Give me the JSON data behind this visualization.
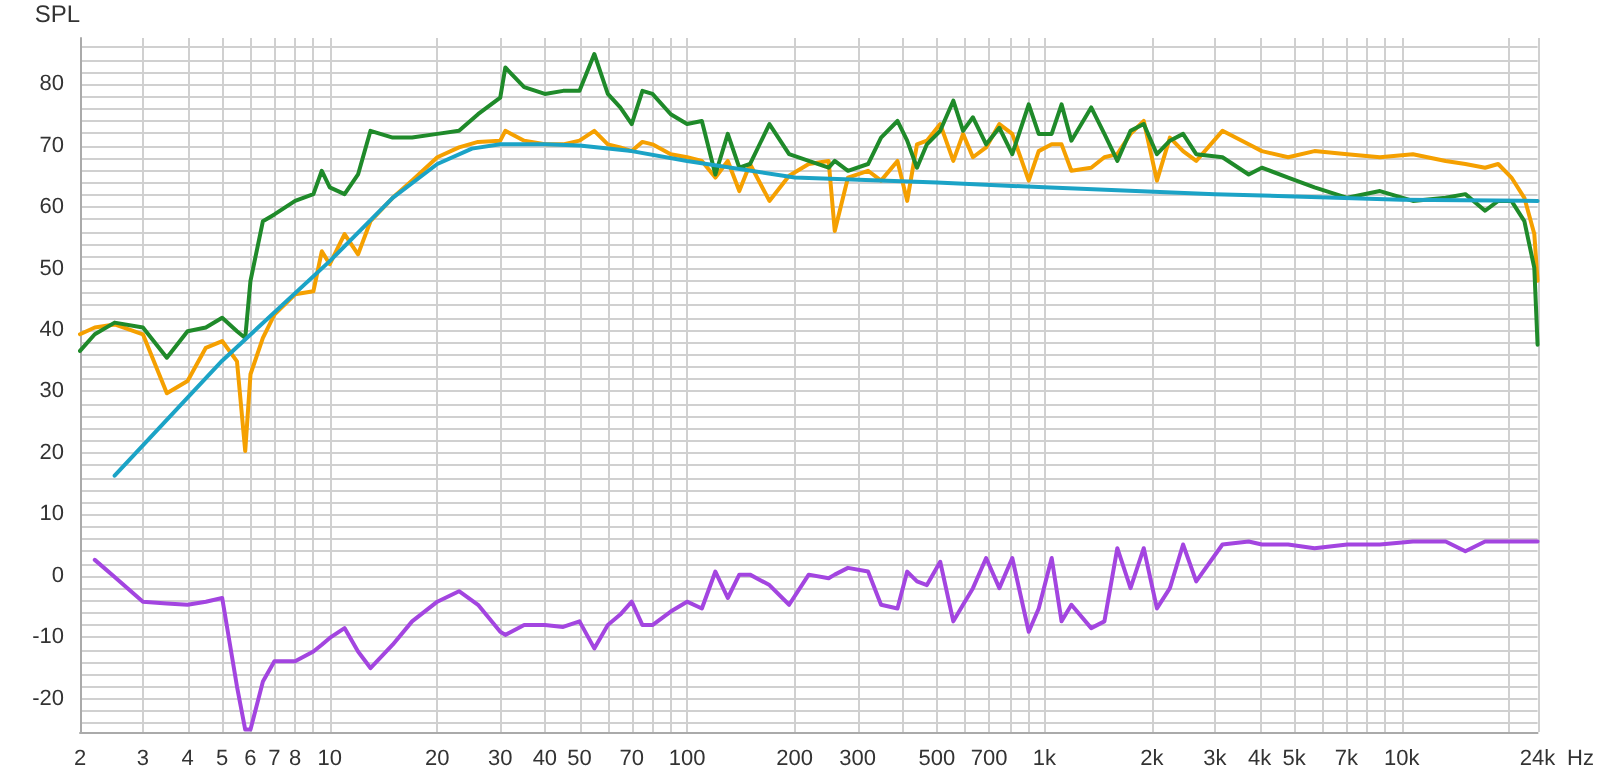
{
  "chart_data": {
    "type": "line",
    "ylabel": "SPL",
    "log": "x",
    "grid": true,
    "xlim": [
      2,
      24000
    ],
    "ylim": [
      -25.4,
      87.5
    ],
    "xticks": [
      2,
      3,
      4,
      5,
      6,
      7,
      8,
      {
        "value": 9,
        "label": null
      },
      10,
      20,
      30,
      40,
      50,
      {
        "value": 60,
        "label": null
      },
      70,
      {
        "value": 80,
        "label": null
      },
      {
        "value": 90,
        "label": null
      },
      100,
      200,
      300,
      {
        "value": 400,
        "label": null
      },
      500,
      {
        "value": 600,
        "label": null
      },
      700,
      {
        "value": 800,
        "label": null
      },
      {
        "value": 900,
        "label": null
      },
      {
        "value": 1000,
        "label": "1k"
      },
      {
        "value": 2000,
        "label": "2k"
      },
      {
        "value": 3000,
        "label": "3k"
      },
      {
        "value": 4000,
        "label": "4k"
      },
      {
        "value": 5000,
        "label": "5k"
      },
      {
        "value": 6000,
        "label": null
      },
      {
        "value": 7000,
        "label": "7k"
      },
      {
        "value": 8000,
        "label": null
      },
      {
        "value": 9000,
        "label": null
      },
      {
        "value": 10000,
        "label": "10k"
      },
      {
        "value": 20000,
        "label": null
      },
      {
        "value": 24000,
        "label": "24k"
      }
    ],
    "xlabel": "Hz",
    "yticks": [
      {
        "value": -24,
        "label": null
      },
      {
        "value": -22,
        "label": null
      },
      -20,
      {
        "value": -18,
        "label": null
      },
      {
        "value": -16,
        "label": null
      },
      {
        "value": -14,
        "label": null
      },
      {
        "value": -12,
        "label": null
      },
      -10,
      {
        "value": -8,
        "label": null
      },
      {
        "value": -6,
        "label": null
      },
      {
        "value": -4,
        "label": null
      },
      {
        "value": -2,
        "label": null
      },
      0,
      {
        "value": 2,
        "label": null
      },
      {
        "value": 4,
        "label": null
      },
      {
        "value": 6,
        "label": null
      },
      {
        "value": 8,
        "label": null
      },
      10,
      {
        "value": 12,
        "label": null
      },
      {
        "value": 14,
        "label": null
      },
      {
        "value": 16,
        "label": null
      },
      {
        "value": 18,
        "label": null
      },
      20,
      {
        "value": 22,
        "label": null
      },
      {
        "value": 24,
        "label": null
      },
      {
        "value": 26,
        "label": null
      },
      {
        "value": 28,
        "label": null
      },
      30,
      {
        "value": 32,
        "label": null
      },
      {
        "value": 34,
        "label": null
      },
      {
        "value": 36,
        "label": null
      },
      {
        "value": 38,
        "label": null
      },
      40,
      {
        "value": 42,
        "label": null
      },
      {
        "value": 44,
        "label": null
      },
      {
        "value": 46,
        "label": null
      },
      {
        "value": 48,
        "label": null
      },
      50,
      {
        "value": 52,
        "label": null
      },
      {
        "value": 54,
        "label": null
      },
      {
        "value": 56,
        "label": null
      },
      {
        "value": 58,
        "label": null
      },
      60,
      {
        "value": 62,
        "label": null
      },
      {
        "value": 64,
        "label": null
      },
      {
        "value": 66,
        "label": null
      },
      {
        "value": 68,
        "label": null
      },
      70,
      {
        "value": 72,
        "label": null
      },
      {
        "value": 74,
        "label": null
      },
      {
        "value": 76,
        "label": null
      },
      {
        "value": 78,
        "label": null
      },
      80,
      {
        "value": 82,
        "label": null
      },
      {
        "value": 84,
        "label": null
      },
      {
        "value": 86,
        "label": null
      }
    ],
    "x": [
      2,
      2.2,
      2.5,
      3,
      3.5,
      4,
      4.5,
      5,
      5.5,
      5.8,
      6,
      6.5,
      7,
      8,
      9,
      9.5,
      10,
      11,
      12,
      13,
      15,
      17,
      20,
      23,
      26,
      30,
      31,
      35,
      40,
      45,
      50,
      55,
      60,
      65,
      70,
      75,
      80,
      90,
      100,
      110,
      120,
      130,
      140,
      150,
      170,
      193,
      219,
      249,
      259,
      282,
      321,
      349,
      388,
      413,
      440,
      469,
      511,
      556,
      592,
      631,
      687,
      748,
      813,
      904,
      964,
      1048,
      1117,
      1190,
      1352,
      1472,
      1600,
      1742,
      1897,
      2065,
      2245,
      2444,
      2660,
      3150,
      3730,
      4060,
      4810,
      5700,
      7040,
      8690,
      10750,
      13270,
      15070,
      17110,
      18620,
      20280,
      22040,
      23500,
      24000
    ],
    "series": [
      {
        "color": "#f5a000",
        "values": [
          39.3,
          40.4,
          40.9,
          39.3,
          29.7,
          31.7,
          37.1,
          38.2,
          34.9,
          20.3,
          32.8,
          38.7,
          42.5,
          45.8,
          46.3,
          52.8,
          50.7,
          55.6,
          52.3,
          57.7,
          61.5,
          64.3,
          68.1,
          69.7,
          70.6,
          70.8,
          72.4,
          70.8,
          70.2,
          70.2,
          70.8,
          72.4,
          70.2,
          69.7,
          69.1,
          70.6,
          70.2,
          68.6,
          68.1,
          67.5,
          64.8,
          67.5,
          62.6,
          67.0,
          61.0,
          65.1,
          67.0,
          67.5,
          56.1,
          64.8,
          65.9,
          64.3,
          67.5,
          61.0,
          70.2,
          70.8,
          73.5,
          67.5,
          71.9,
          68.1,
          69.7,
          73.5,
          71.9,
          64.3,
          69.1,
          70.2,
          70.2,
          65.9,
          66.4,
          68.1,
          68.6,
          71.9,
          74.0,
          64.3,
          71.3,
          69.1,
          67.5,
          72.4,
          70.2,
          69.1,
          68.1,
          69.1,
          68.6,
          68.1,
          68.6,
          67.5,
          67.0,
          66.4,
          67.0,
          64.8,
          61.5,
          55.6,
          48.0
        ]
      },
      {
        "color": "#1f8a2a",
        "values": [
          36.6,
          39.3,
          41.2,
          40.4,
          35.5,
          39.8,
          40.4,
          42.0,
          39.8,
          38.7,
          48.0,
          57.7,
          58.8,
          61.0,
          62.1,
          65.9,
          63.2,
          62.1,
          65.3,
          72.4,
          71.3,
          71.3,
          71.9,
          72.4,
          75.1,
          77.8,
          82.7,
          79.5,
          78.4,
          78.9,
          78.9,
          84.9,
          78.4,
          76.2,
          73.5,
          78.9,
          78.4,
          75.1,
          73.5,
          74.0,
          65.3,
          71.9,
          66.4,
          67.0,
          73.5,
          68.6,
          67.5,
          66.4,
          67.5,
          65.9,
          67.0,
          71.3,
          74.0,
          70.8,
          66.4,
          70.2,
          72.4,
          77.3,
          72.4,
          74.6,
          70.2,
          72.9,
          68.6,
          76.7,
          71.9,
          71.9,
          76.7,
          70.8,
          76.2,
          71.9,
          67.5,
          72.4,
          73.5,
          68.6,
          70.8,
          71.9,
          68.6,
          68.1,
          65.3,
          66.4,
          64.8,
          63.2,
          61.5,
          62.6,
          61.0,
          61.5,
          62.1,
          59.4,
          61.0,
          61.0,
          57.7,
          50.1,
          37.6
        ]
      },
      {
        "color": "#1ba3c6",
        "x": [
          2.5,
          5,
          10,
          15,
          20,
          25,
          30,
          40,
          50,
          70,
          100,
          200,
          500,
          1000,
          3000,
          10000,
          24000
        ],
        "values": [
          16.3,
          35.0,
          51.2,
          61.5,
          67.0,
          69.5,
          70.2,
          70.2,
          70.0,
          69.1,
          67.5,
          64.8,
          64.0,
          63.2,
          62.1,
          61.2,
          61.0
        ]
      },
      {
        "color": "#a345e0",
        "values": [
          null,
          2.6,
          -0.2,
          -4.2,
          -4.5,
          -4.7,
          -4.2,
          -3.6,
          -18,
          -25,
          -25,
          -17.2,
          -13.9,
          -13.9,
          -12.3,
          -11.2,
          -10.1,
          -8.5,
          -12.3,
          -15.0,
          -11.2,
          -7.4,
          -4.2,
          -2.5,
          -4.7,
          -9.1,
          -9.6,
          -8.0,
          -8.0,
          -8.3,
          -7.4,
          -11.8,
          -8.0,
          -6.3,
          -4.2,
          -8.0,
          -8.0,
          -5.8,
          -4.2,
          -5.3,
          0.7,
          -3.6,
          0.2,
          0.2,
          -1.5,
          -4.7,
          0.2,
          -0.4,
          0.2,
          1.3,
          0.7,
          -4.7,
          -5.3,
          0.7,
          -0.9,
          -1.5,
          2.3,
          -7.4,
          -4.7,
          -2.0,
          2.9,
          -2.0,
          2.9,
          -9.1,
          -5.3,
          2.9,
          -7.4,
          -4.7,
          -8.5,
          -7.4,
          4.5,
          -2.0,
          4.5,
          -5.3,
          -2.0,
          5.1,
          -0.9,
          5.1,
          5.6,
          5.1,
          5.1,
          4.5,
          5.1,
          5.1,
          5.6,
          5.6,
          4.0,
          5.6,
          5.6,
          5.6,
          5.6,
          5.6,
          5.6
        ]
      }
    ]
  }
}
